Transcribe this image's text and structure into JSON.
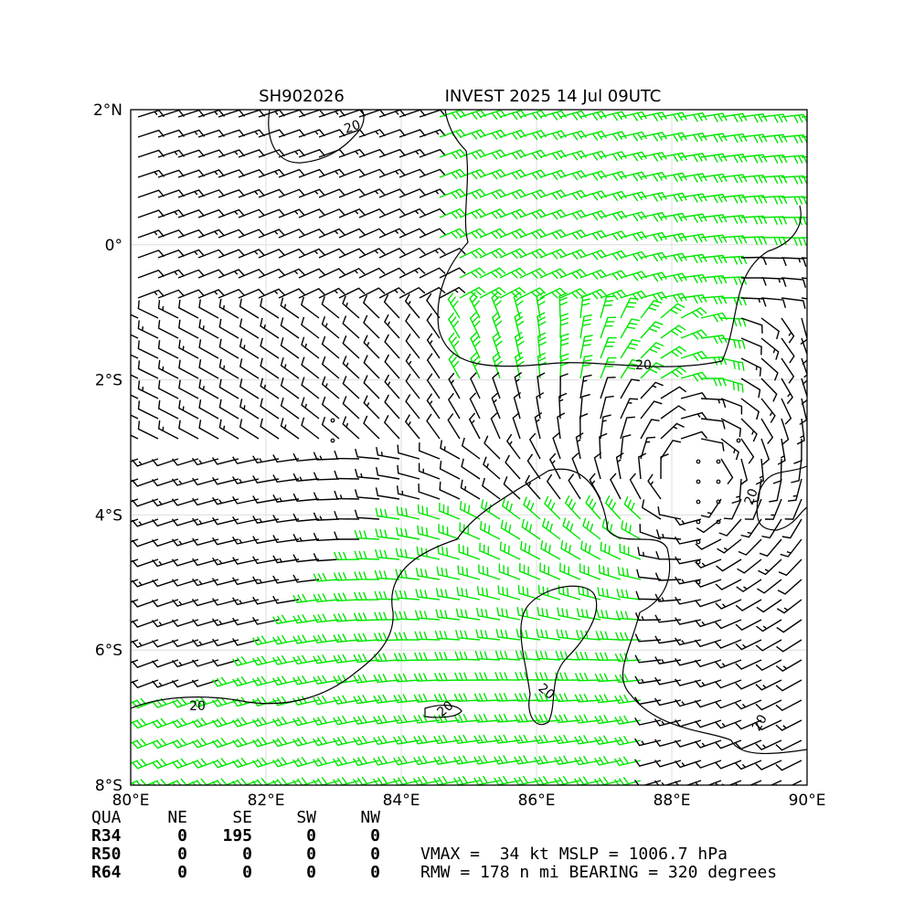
{
  "header": {
    "storm_id": "SH902026",
    "title": "INVEST 2025 14 Jul 09UTC"
  },
  "map": {
    "lat_ticks": [
      "2°N",
      "0°",
      "2°S",
      "4°S",
      "6°S",
      "8°S"
    ],
    "lon_ticks": [
      "80°E",
      "82°E",
      "84°E",
      "86°E",
      "88°E",
      "90°E"
    ],
    "contour_labels": [
      "20",
      "20",
      "20",
      "20",
      "20",
      "20",
      "20"
    ]
  },
  "table": {
    "header": [
      "QUA",
      "NE",
      "SE",
      "SW",
      "NW"
    ],
    "rows": [
      [
        "R34",
        "0",
        "195",
        "0",
        "0"
      ],
      [
        "R50",
        "0",
        "0",
        "0",
        "0"
      ],
      [
        "R64",
        "0",
        "0",
        "0",
        "0"
      ]
    ]
  },
  "stats": [
    "VMAX =  34 kt MSLP = 1006.7 hPa",
    "RMW = 178 n mi BEARING = 320 degrees"
  ]
}
